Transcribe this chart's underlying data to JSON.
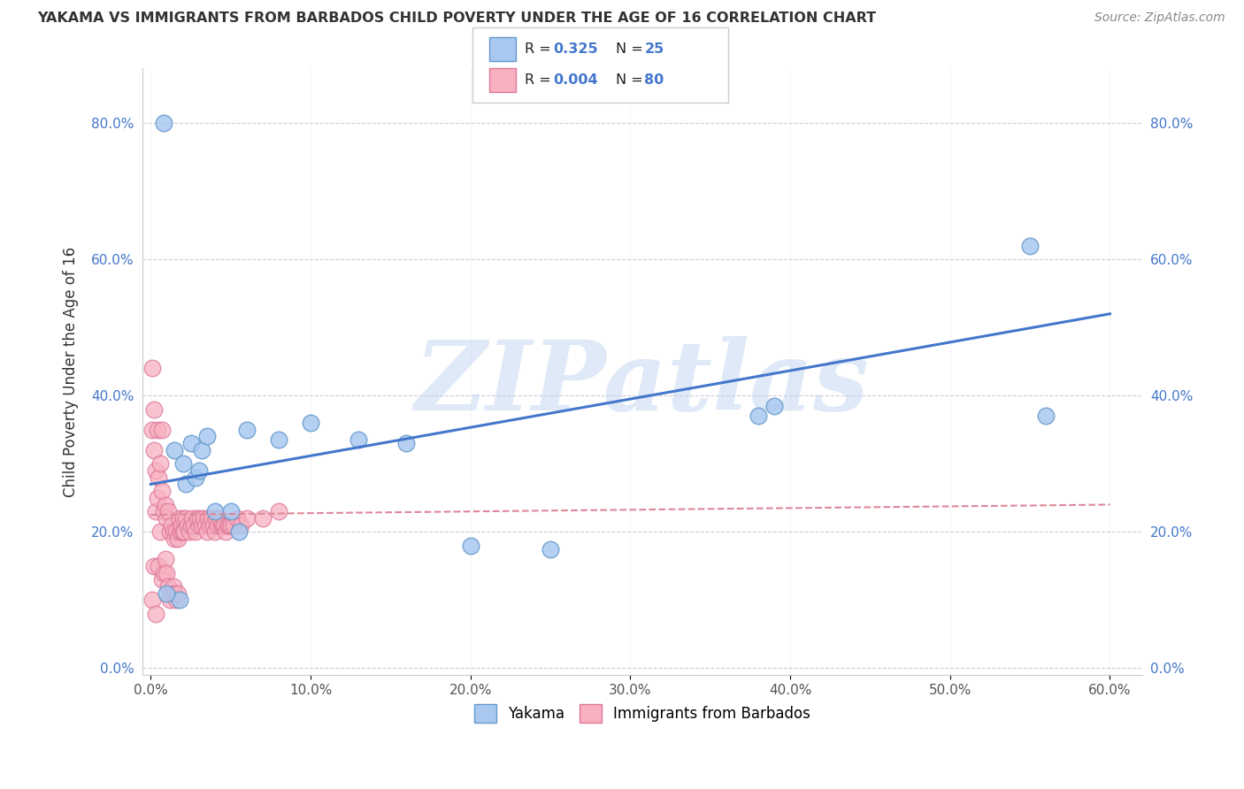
{
  "title": "YAKAMA VS IMMIGRANTS FROM BARBADOS CHILD POVERTY UNDER THE AGE OF 16 CORRELATION CHART",
  "source": "Source: ZipAtlas.com",
  "ylabel": "Child Poverty Under the Age of 16",
  "watermark": "ZIPatlas",
  "xlim": [
    -0.005,
    0.62
  ],
  "ylim": [
    -0.01,
    0.88
  ],
  "xticks": [
    0.0,
    0.1,
    0.2,
    0.3,
    0.4,
    0.5,
    0.6
  ],
  "xticklabels": [
    "0.0%",
    "10.0%",
    "20.0%",
    "30.0%",
    "40.0%",
    "50.0%",
    "60.0%"
  ],
  "yticks": [
    0.0,
    0.2,
    0.4,
    0.6,
    0.8
  ],
  "yticklabels": [
    "0.0%",
    "20.0%",
    "40.0%",
    "60.0%",
    "80.0%"
  ],
  "yakama_color": "#a8c8f0",
  "yakama_edge": "#6699cc",
  "barbados_color": "#f8b0c0",
  "barbados_edge": "#dd7799",
  "trend_yakama_color": "#4477cc",
  "trend_barbados_color": "#dd8899",
  "legend_color": "#4477cc",
  "grid_color": "#ccccdd",
  "background_color": "#ffffff",
  "yakama_x": [
    0.008,
    0.015,
    0.018,
    0.02,
    0.022,
    0.025,
    0.028,
    0.03,
    0.032,
    0.035,
    0.04,
    0.05,
    0.055,
    0.06,
    0.08,
    0.1,
    0.13,
    0.16,
    0.2,
    0.25,
    0.38,
    0.39,
    0.55,
    0.56,
    0.01
  ],
  "yakama_y": [
    0.8,
    0.32,
    0.1,
    0.3,
    0.27,
    0.33,
    0.28,
    0.29,
    0.32,
    0.34,
    0.23,
    0.23,
    0.2,
    0.35,
    0.335,
    0.36,
    0.335,
    0.33,
    0.18,
    0.175,
    0.37,
    0.385,
    0.62,
    0.37,
    0.11
  ],
  "barbados_x": [
    0.001,
    0.001,
    0.001,
    0.002,
    0.002,
    0.002,
    0.003,
    0.003,
    0.003,
    0.004,
    0.004,
    0.005,
    0.005,
    0.006,
    0.006,
    0.007,
    0.007,
    0.007,
    0.008,
    0.008,
    0.009,
    0.009,
    0.01,
    0.01,
    0.011,
    0.011,
    0.012,
    0.012,
    0.013,
    0.013,
    0.014,
    0.014,
    0.015,
    0.015,
    0.016,
    0.016,
    0.017,
    0.017,
    0.018,
    0.018,
    0.019,
    0.019,
    0.02,
    0.02,
    0.021,
    0.022,
    0.023,
    0.024,
    0.025,
    0.026,
    0.027,
    0.028,
    0.029,
    0.03,
    0.031,
    0.032,
    0.033,
    0.034,
    0.035,
    0.036,
    0.037,
    0.038,
    0.039,
    0.04,
    0.041,
    0.042,
    0.043,
    0.044,
    0.045,
    0.046,
    0.047,
    0.048,
    0.049,
    0.05,
    0.052,
    0.054,
    0.056,
    0.06,
    0.07,
    0.08
  ],
  "barbados_y": [
    0.44,
    0.35,
    0.1,
    0.38,
    0.32,
    0.15,
    0.29,
    0.23,
    0.08,
    0.35,
    0.25,
    0.28,
    0.15,
    0.3,
    0.2,
    0.26,
    0.35,
    0.13,
    0.23,
    0.14,
    0.24,
    0.16,
    0.22,
    0.14,
    0.23,
    0.12,
    0.2,
    0.1,
    0.21,
    0.11,
    0.2,
    0.12,
    0.19,
    0.11,
    0.2,
    0.1,
    0.19,
    0.11,
    0.2,
    0.22,
    0.2,
    0.21,
    0.2,
    0.22,
    0.2,
    0.22,
    0.21,
    0.2,
    0.21,
    0.22,
    0.21,
    0.2,
    0.22,
    0.21,
    0.22,
    0.21,
    0.22,
    0.21,
    0.2,
    0.22,
    0.21,
    0.22,
    0.21,
    0.2,
    0.22,
    0.21,
    0.22,
    0.21,
    0.21,
    0.21,
    0.2,
    0.21,
    0.21,
    0.21,
    0.21,
    0.22,
    0.21,
    0.22,
    0.22,
    0.23
  ],
  "trend_yak_x0": 0.0,
  "trend_yak_y0": 0.27,
  "trend_yak_x1": 0.6,
  "trend_yak_y1": 0.52,
  "trend_barb_x0": 0.0,
  "trend_barb_y0": 0.225,
  "trend_barb_x1": 0.6,
  "trend_barb_y1": 0.24
}
